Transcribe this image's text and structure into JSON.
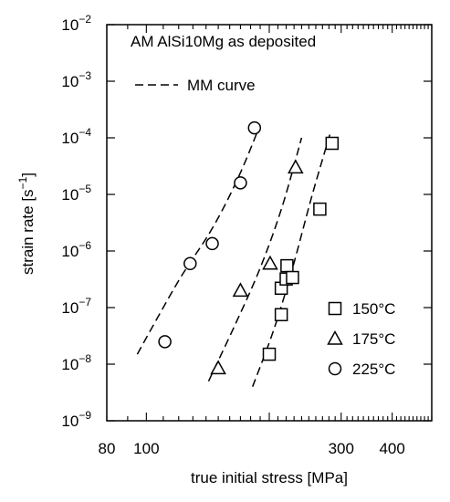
{
  "chart_data": {
    "type": "scatter",
    "title": "AM AlSi10Mg as deposited",
    "xlabel": "true initial stress [MPa]",
    "ylabel_main": "strain rate [s",
    "ylabel_exp": "−1",
    "ylabel_close": "]",
    "x_scale": "log",
    "y_scale": "log",
    "xlim": [
      80,
      500
    ],
    "ylim": [
      1e-09,
      0.01
    ],
    "grid": false,
    "legend_position": "bottom-right",
    "x_ticks": [
      {
        "value": 80,
        "label": "80"
      },
      {
        "value": 100,
        "label": "100"
      },
      {
        "value": 300,
        "label": "300"
      },
      {
        "value": 400,
        "label": "400"
      }
    ],
    "y_ticks": [
      {
        "value": 1e-09,
        "base": "10",
        "exp": "−9"
      },
      {
        "value": 1e-08,
        "base": "10",
        "exp": "−8"
      },
      {
        "value": 1e-07,
        "base": "10",
        "exp": "−7"
      },
      {
        "value": 1e-06,
        "base": "10",
        "exp": "−6"
      },
      {
        "value": 1e-05,
        "base": "10",
        "exp": "−5"
      },
      {
        "value": 0.0001,
        "base": "10",
        "exp": "−4"
      },
      {
        "value": 0.001,
        "base": "10",
        "exp": "−3"
      },
      {
        "value": 0.01,
        "base": "10",
        "exp": "−2"
      }
    ],
    "model_label": "MM curve",
    "series": [
      {
        "name": "150°C",
        "marker": "square",
        "points": [
          {
            "x": 200,
            "y": 1.5e-08
          },
          {
            "x": 214,
            "y": 7.5e-08
          },
          {
            "x": 214,
            "y": 2.2e-07
          },
          {
            "x": 220,
            "y": 3.2e-07
          },
          {
            "x": 221,
            "y": 5.5e-07
          },
          {
            "x": 228,
            "y": 3.4e-07
          },
          {
            "x": 266,
            "y": 5.5e-06
          },
          {
            "x": 285,
            "y": 8e-05
          }
        ]
      },
      {
        "name": "175°C",
        "marker": "triangle",
        "points": [
          {
            "x": 150,
            "y": 8.5e-09
          },
          {
            "x": 170,
            "y": 2e-07
          },
          {
            "x": 201,
            "y": 6e-07
          },
          {
            "x": 232,
            "y": 3e-05
          }
        ]
      },
      {
        "name": "225°C",
        "marker": "circle",
        "points": [
          {
            "x": 111,
            "y": 2.5e-08
          },
          {
            "x": 128,
            "y": 6e-07
          },
          {
            "x": 145,
            "y": 1.35e-06
          },
          {
            "x": 170,
            "y": 1.6e-05
          },
          {
            "x": 184,
            "y": 0.00015
          }
        ]
      }
    ],
    "model_curves": [
      {
        "series": "225°C",
        "points": [
          {
            "x": 95,
            "y": 1.5e-08
          },
          {
            "x": 120,
            "y": 3e-07
          },
          {
            "x": 145,
            "y": 2.5e-06
          },
          {
            "x": 168,
            "y": 2e-05
          },
          {
            "x": 190,
            "y": 0.00017
          }
        ]
      },
      {
        "series": "175°C",
        "points": [
          {
            "x": 142,
            "y": 5e-09
          },
          {
            "x": 165,
            "y": 5e-08
          },
          {
            "x": 190,
            "y": 5e-07
          },
          {
            "x": 215,
            "y": 6e-06
          },
          {
            "x": 240,
            "y": 0.0001
          }
        ]
      },
      {
        "series": "150°C",
        "points": [
          {
            "x": 182,
            "y": 4e-09
          },
          {
            "x": 205,
            "y": 4e-08
          },
          {
            "x": 228,
            "y": 5e-07
          },
          {
            "x": 255,
            "y": 1e-05
          },
          {
            "x": 283,
            "y": 0.00013
          }
        ]
      }
    ]
  }
}
